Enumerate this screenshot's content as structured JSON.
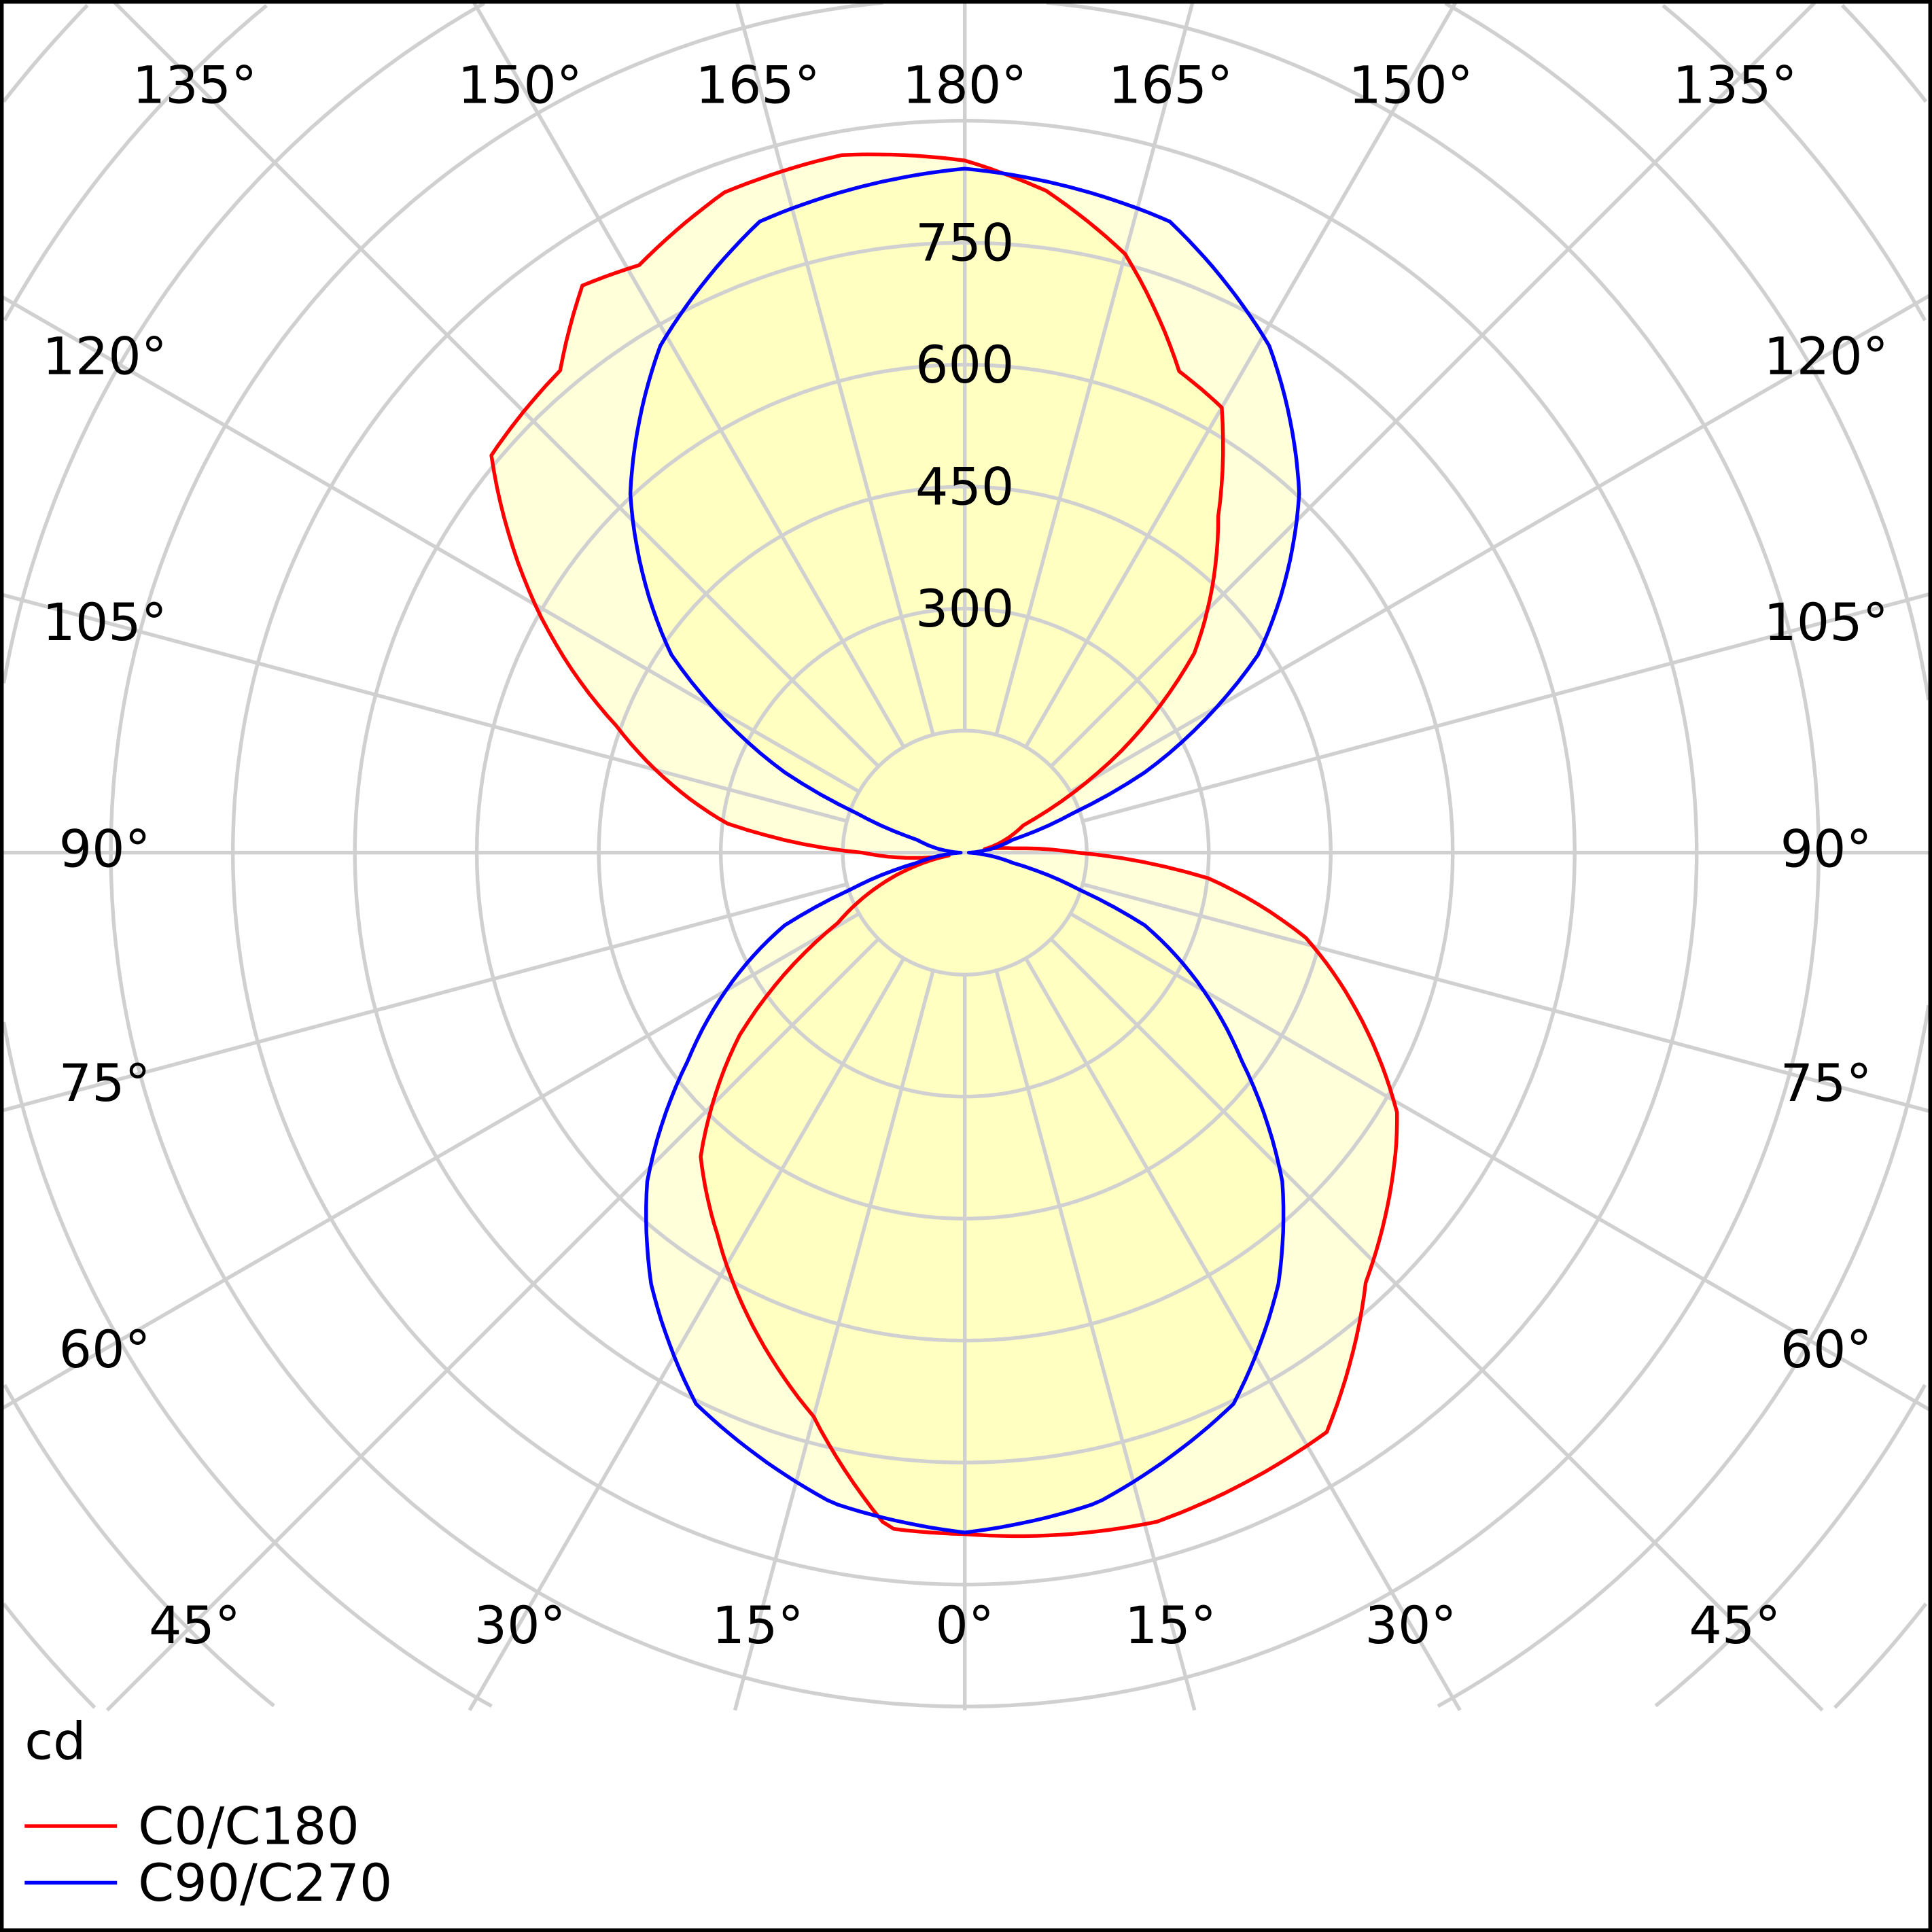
{
  "chart_data": {
    "type": "polar",
    "unit_label": "cd",
    "radial_ticks": [
      300,
      450,
      600,
      750
    ],
    "ring_step": 150,
    "angle_labels_top": [
      "135°",
      "150°",
      "165°",
      "180°",
      "165°",
      "150°",
      "135°"
    ],
    "angle_labels_left": [
      "120°",
      "105°",
      "90°",
      "75°",
      "60°"
    ],
    "angle_labels_right": [
      "120°",
      "105°",
      "90°",
      "75°",
      "60°"
    ],
    "angle_labels_bottom": [
      "45°",
      "30°",
      "15°",
      "0°",
      "15°",
      "30°",
      "45°"
    ],
    "series": [
      {
        "name": "C0/C180",
        "color": "#ff0000",
        "right": {
          "gamma": [
            0,
            16,
            32,
            43,
            48,
            56,
            59,
            68,
            76,
            84,
            90,
            95,
            100,
            115,
            123,
            131,
            143,
            150,
            156,
            165,
            173,
            180
          ],
          "cd": [
            838,
            856,
            840,
            723,
            691,
            640,
            620,
            520,
            432,
            301,
            139,
            60,
            25,
            79,
            229,
            374,
            518,
            632,
            648,
            762,
            820,
            851
          ]
        },
        "left": {
          "gamma": [
            0,
            6.5,
            15,
            25,
            33,
            41,
            51,
            61,
            80,
            90,
            97,
            110,
            119,
            130,
            140,
            146,
            151,
            160,
            170,
            180
          ],
          "cd": [
            838,
            836,
            718,
            630,
            559,
            495,
            356,
            179,
            20,
            126,
            294,
            456,
            595,
            760,
            774,
            841,
            826,
            864,
            871,
            851
          ]
        }
      },
      {
        "name": "C90/C270",
        "color": "#0000ff",
        "right": {
          "gamma": [
            0,
            11.5,
            26,
            36,
            44,
            53,
            68,
            72,
            78,
            85,
            90,
            95,
            105,
            110,
            114,
            124,
            137,
            149,
            162,
            180
          ],
          "cd": [
            836,
            816,
            754,
            656,
            562,
            427,
            239,
            150,
            60,
            20,
            5,
            20,
            60,
            141,
            242,
            435,
            603,
            727,
            816,
            841
          ]
        },
        "left": {
          "gamma": [
            0,
            11.5,
            26,
            36,
            44,
            53,
            68,
            72,
            78,
            85,
            90,
            95,
            105,
            110,
            114,
            124,
            137,
            149,
            162,
            180
          ],
          "cd": [
            836,
            816,
            754,
            656,
            562,
            427,
            239,
            150,
            60,
            20,
            5,
            20,
            60,
            141,
            242,
            435,
            603,
            727,
            816,
            841
          ]
        }
      }
    ],
    "fill_color": "#ffff96"
  }
}
